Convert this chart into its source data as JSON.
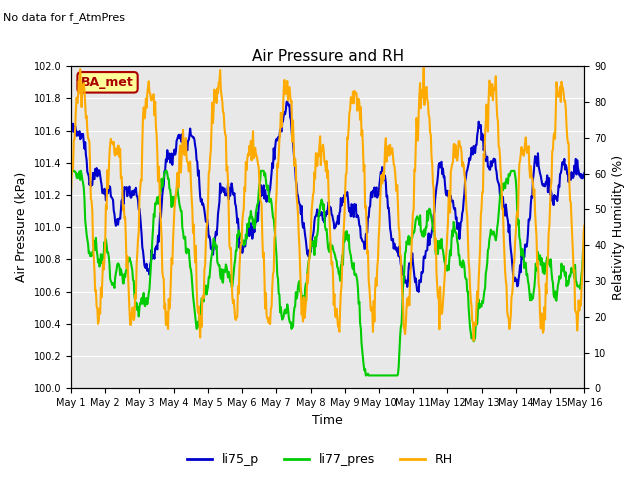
{
  "title": "Air Pressure and RH",
  "subtitle": "No data for f_AtmPres",
  "xlabel": "Time",
  "ylabel_left": "Air Pressure (kPa)",
  "ylabel_right": "Relativity Humidity (%)",
  "ylim_left": [
    100.0,
    102.0
  ],
  "ylim_right": [
    0,
    90
  ],
  "yticks_left": [
    100.0,
    100.2,
    100.4,
    100.6,
    100.8,
    101.0,
    101.2,
    101.4,
    101.6,
    101.8,
    102.0
  ],
  "yticks_right": [
    0,
    10,
    20,
    30,
    40,
    50,
    60,
    70,
    80,
    90
  ],
  "xtick_labels": [
    "May 1",
    "May 2",
    "May 3",
    "May 4",
    "May 5",
    "May 6",
    "May 7",
    "May 8",
    "May 9",
    "May 10",
    "May 11",
    "May 12",
    "May 13",
    "May 14",
    "May 15",
    "May 16"
  ],
  "n_days": 15,
  "background_color": "#ffffff",
  "plot_bg_color": "#e8e8e8",
  "line_colors": {
    "li75_p": "#0000cc",
    "li77_pres": "#00cc00",
    "RH": "#ffaa00"
  },
  "line_widths": {
    "li75_p": 1.5,
    "li77_pres": 1.5,
    "RH": 1.5
  },
  "legend_label_box": "BA_met",
  "legend_box_color": "#ffff99",
  "legend_box_edge_color": "#aa0000",
  "grid_color": "#ffffff",
  "title_fontsize": 11,
  "label_fontsize": 9,
  "tick_fontsize": 8
}
